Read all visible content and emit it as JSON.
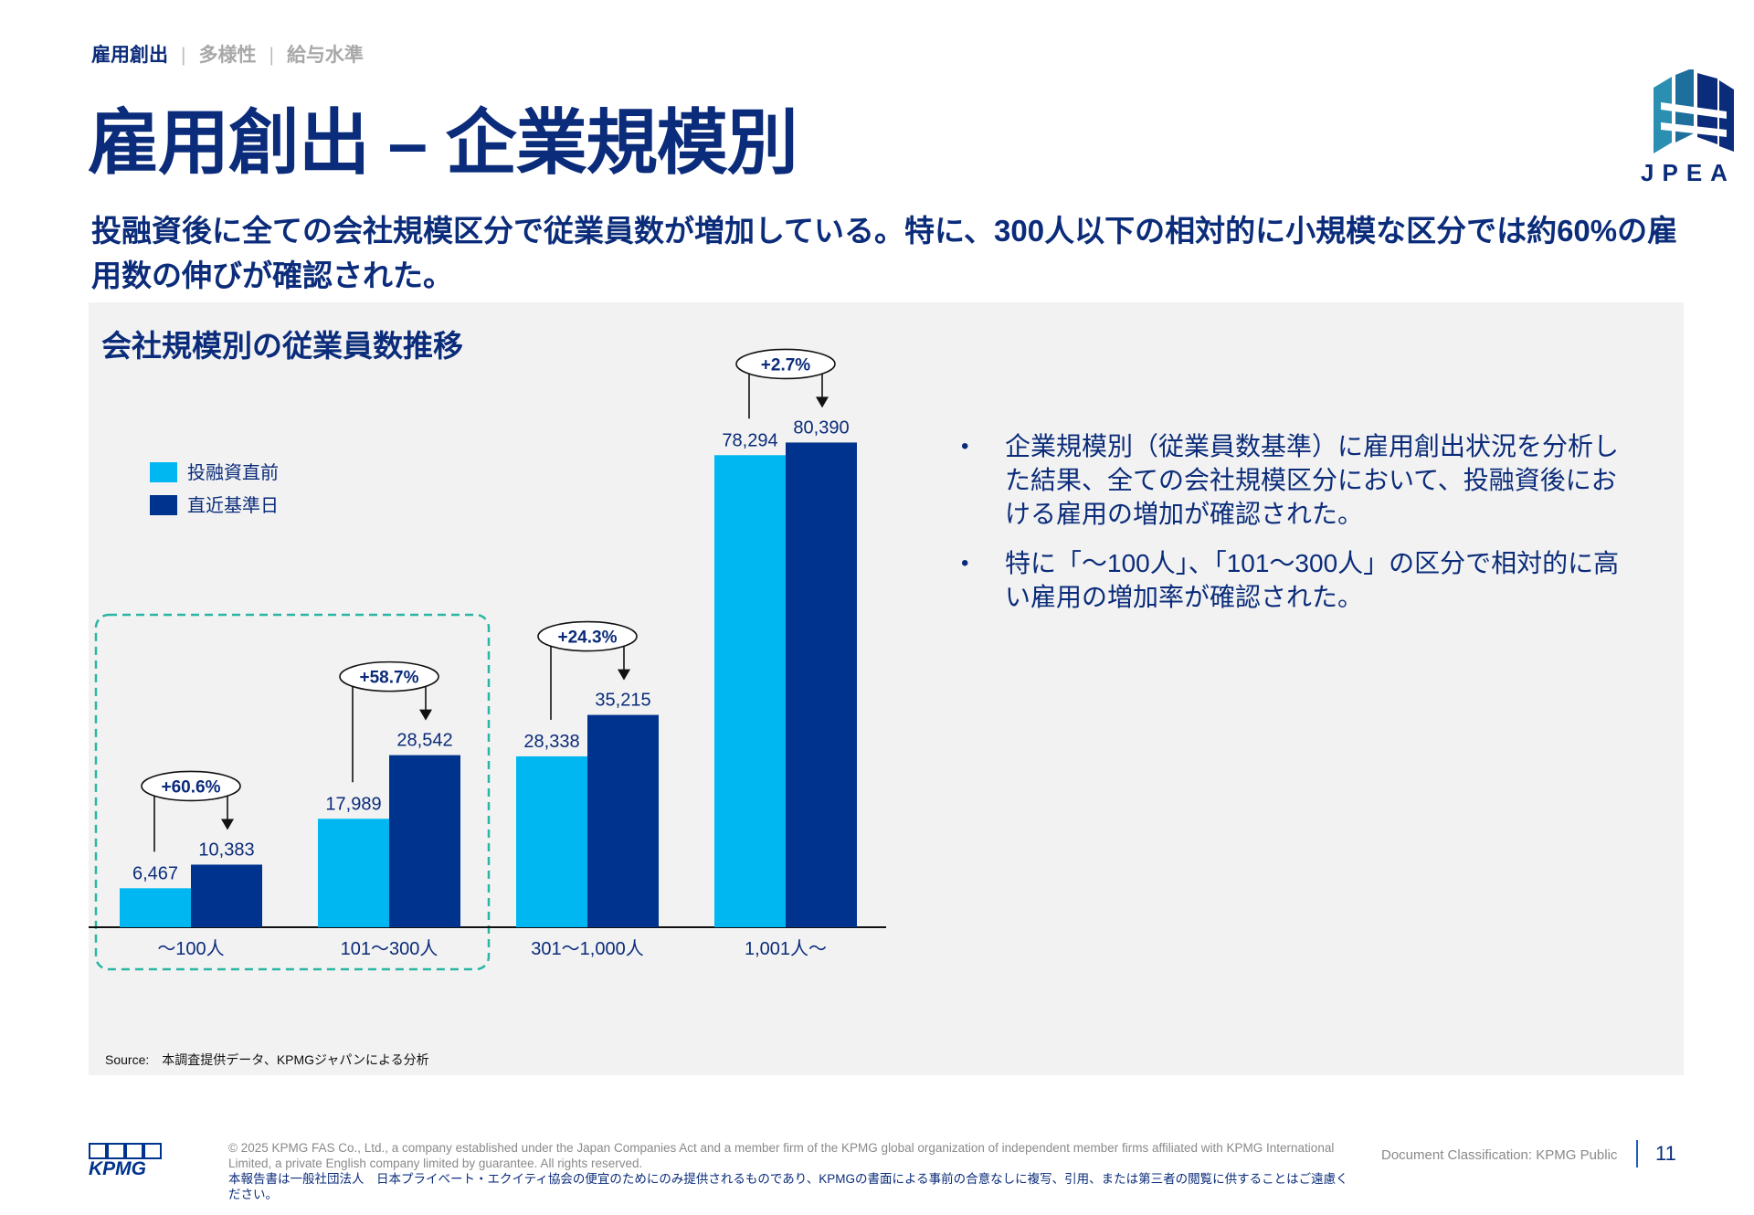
{
  "breadcrumb": {
    "item1": "雇用創出",
    "item2": "多様性",
    "item3": "給与水準",
    "sep": "|"
  },
  "title": "雇用創出 – 企業規模別",
  "logo": {
    "text": "JPEA"
  },
  "lead": "投融資後に全ての会社規模区分で従業員数が増加している。特に、300人以下の相対的に小規模な区分では約60%の雇用数の伸びが確認された。",
  "panel": {
    "title": "会社規模別の従業員数推移"
  },
  "chart_data": {
    "type": "bar",
    "categories": [
      "～100人",
      "101～300人",
      "301～1,000人",
      "1,001人～"
    ],
    "series": [
      {
        "name": "投融資直前",
        "values": [
          6467,
          17989,
          28338,
          78294
        ],
        "labels": [
          "6,467",
          "17,989",
          "28,338",
          "78,294"
        ],
        "color": "#00b7f1"
      },
      {
        "name": "直近基準日",
        "values": [
          10383,
          28542,
          35215,
          80390
        ],
        "labels": [
          "10,383",
          "28,542",
          "35,215",
          "80,390"
        ],
        "color": "#00338d"
      }
    ],
    "growth_labels": [
      "+60.6%",
      "+58.7%",
      "+24.3%",
      "+2.7%"
    ],
    "ylim": [
      0,
      90000
    ],
    "highlight": "dashed box around first two categories",
    "highlight_color": "#2bb5a4",
    "legend": "left"
  },
  "bullets": [
    "企業規模別（従業員数基準）に雇用創出状況を分析した結果、全ての会社規模区分において、投融資後における雇用の増加が確認された。",
    "特に「～100人」、「101～300人」の区分で相対的に高い雇用の増加率が確認された。"
  ],
  "bullet_mark": "•",
  "source": "Source:　本調査提供データ、KPMGジャパンによる分析",
  "footer": {
    "logo_text": "KPMG",
    "copyright": "© 2025 KPMG FAS Co., Ltd., a company established under the Japan Companies Act and a member firm of the KPMG global organization of independent member firms affiliated with KPMG International Limited, a private English company limited by guarantee. All rights reserved.",
    "disclaimer": "本報告書は一般社団法人　日本プライベート・エクイティ協会の便宜のためにのみ提供されるものであり、KPMGの書面による事前の合意なしに複写、引用、または第三者の閲覧に供することはご遠慮ください。",
    "classification": "Document Classification: KPMG Public",
    "page_number": "11"
  }
}
